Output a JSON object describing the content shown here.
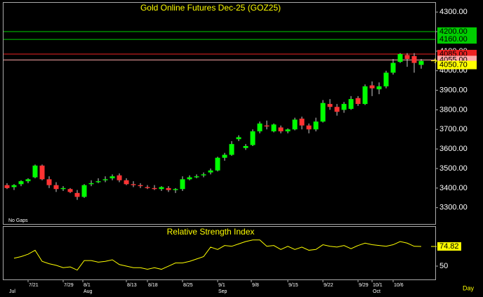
{
  "chart_data": [
    {
      "type": "candlestick",
      "title": "Gold Online Futures Dec-25 (GOZ25)",
      "note": "No Gaps",
      "up_color": "#00ff00",
      "down_color": "#ff3333",
      "open": [
        3415,
        3405,
        3420,
        3435,
        3455,
        3515,
        3445,
        3415,
        3395,
        3395,
        3375,
        3355,
        3420,
        3430,
        3440,
        3450,
        3465,
        3440,
        3420,
        3415,
        3405,
        3400,
        3395,
        3400,
        3390,
        3395,
        3445,
        3455,
        3465,
        3480,
        3490,
        3555,
        3570,
        3650,
        3605,
        3620,
        3690,
        3720,
        3690,
        3710,
        3690,
        3700,
        3755,
        3720,
        3700,
        3740,
        3830,
        3815,
        3800,
        3805,
        3860,
        3830,
        3925,
        3905,
        3920,
        3990,
        4045,
        4080,
        4075,
        4030
      ],
      "high": [
        3425,
        3420,
        3440,
        3450,
        3520,
        3520,
        3460,
        3430,
        3410,
        3400,
        3390,
        3420,
        3440,
        3450,
        3460,
        3470,
        3475,
        3450,
        3435,
        3425,
        3415,
        3415,
        3410,
        3410,
        3400,
        3460,
        3465,
        3470,
        3480,
        3500,
        3560,
        3580,
        3640,
        3670,
        3625,
        3700,
        3740,
        3745,
        3730,
        3720,
        3705,
        3760,
        3765,
        3730,
        3760,
        3850,
        3855,
        3830,
        3840,
        3870,
        3870,
        3930,
        3945,
        3940,
        4000,
        4060,
        4090,
        4090,
        4090,
        4060
      ],
      "low": [
        3395,
        3390,
        3410,
        3425,
        3450,
        3440,
        3400,
        3380,
        3385,
        3375,
        3340,
        3350,
        3410,
        3425,
        3430,
        3440,
        3430,
        3415,
        3405,
        3400,
        3395,
        3390,
        3385,
        3380,
        3375,
        3385,
        3440,
        3450,
        3455,
        3470,
        3485,
        3540,
        3565,
        3640,
        3595,
        3615,
        3680,
        3700,
        3685,
        3680,
        3680,
        3695,
        3700,
        3680,
        3690,
        3735,
        3800,
        3770,
        3785,
        3800,
        3820,
        3825,
        3870,
        3880,
        3910,
        3980,
        4040,
        4020,
        3990,
        4010
      ],
      "close": [
        3400,
        3415,
        3435,
        3445,
        3515,
        3445,
        3415,
        3395,
        3400,
        3380,
        3355,
        3415,
        3425,
        3435,
        3445,
        3460,
        3440,
        3420,
        3415,
        3410,
        3400,
        3395,
        3405,
        3390,
        3395,
        3445,
        3455,
        3460,
        3470,
        3490,
        3555,
        3570,
        3625,
        3660,
        3615,
        3690,
        3730,
        3715,
        3725,
        3690,
        3700,
        3750,
        3720,
        3700,
        3740,
        3835,
        3815,
        3790,
        3830,
        3855,
        3830,
        3920,
        3910,
        3920,
        3990,
        4040,
        4085,
        4060,
        4040,
        4050
      ],
      "xlim": [
        -0.5,
        61
      ],
      "ylim": [
        3220,
        4340
      ],
      "yticks": [
        {
          "value": 3300,
          "label": "3300.00"
        },
        {
          "value": 3400,
          "label": "3400.00"
        },
        {
          "value": 3500,
          "label": "3500.00"
        },
        {
          "value": 3600,
          "label": "3600.00"
        },
        {
          "value": 3700,
          "label": "3700.00"
        },
        {
          "value": 3800,
          "label": "3800.00"
        },
        {
          "value": 3900,
          "label": "3900.00"
        },
        {
          "value": 4000,
          "label": "4000.00"
        },
        {
          "value": 4100,
          "label": "4100.00"
        },
        {
          "value": 4200,
          "label": "4200.00"
        },
        {
          "value": 4300,
          "label": "4300.00"
        }
      ],
      "levels": [
        {
          "value": 4200,
          "label": "4200.00",
          "color": "#00cc00"
        },
        {
          "value": 4160,
          "label": "4160.00",
          "color": "#00cc00"
        },
        {
          "value": 4085,
          "label": "4085.00",
          "color": "#ee2222"
        },
        {
          "value": 4055,
          "label": "4055.00",
          "color": "#ffaaaa"
        }
      ],
      "last": {
        "value": 4050.7,
        "label": "4050.70"
      },
      "last_color": "#ffff00"
    },
    {
      "type": "line",
      "title": "Relative Strength Index",
      "color": "#ffff00",
      "xlabel": "Day",
      "values": [
        null,
        60,
        62,
        65,
        70,
        56,
        53,
        51,
        48,
        49,
        45,
        57,
        57,
        55,
        56,
        58,
        52,
        50,
        48,
        48,
        46,
        48,
        46,
        50,
        54,
        54,
        56,
        59,
        62,
        74,
        71,
        76,
        75,
        78,
        81,
        83,
        83,
        75,
        76,
        71,
        75,
        71,
        74,
        70,
        71,
        77,
        75,
        74,
        76,
        72,
        76,
        79,
        77,
        76,
        75,
        77,
        81,
        79,
        75,
        74.82
      ],
      "xlim": [
        -0.5,
        61
      ],
      "ylim": [
        33.2,
        99.6
      ],
      "yticks": [
        50
      ],
      "xticks": [
        {
          "value": 3,
          "label": "7/21"
        },
        {
          "value": 8,
          "label": "7/29"
        },
        {
          "value": 10.8,
          "label": "8/1"
        },
        {
          "value": 17,
          "label": "8/13"
        },
        {
          "value": 20,
          "label": "8/18"
        },
        {
          "value": 25,
          "label": "8/25"
        },
        {
          "value": 30,
          "label": "9/1"
        },
        {
          "value": 34.8,
          "label": "9/8"
        },
        {
          "value": 40,
          "label": "9/15"
        },
        {
          "value": 45,
          "label": "9/22"
        },
        {
          "value": 50,
          "label": "9/29"
        },
        {
          "value": 52,
          "label": "10/1"
        },
        {
          "value": 55,
          "label": "10/6"
        }
      ],
      "months": [
        {
          "value": 0.2,
          "label": "Jul"
        },
        {
          "value": 10.8,
          "label": "Aug"
        },
        {
          "value": 30,
          "label": "Sep"
        },
        {
          "value": 52,
          "label": "Oct"
        }
      ]
    }
  ]
}
